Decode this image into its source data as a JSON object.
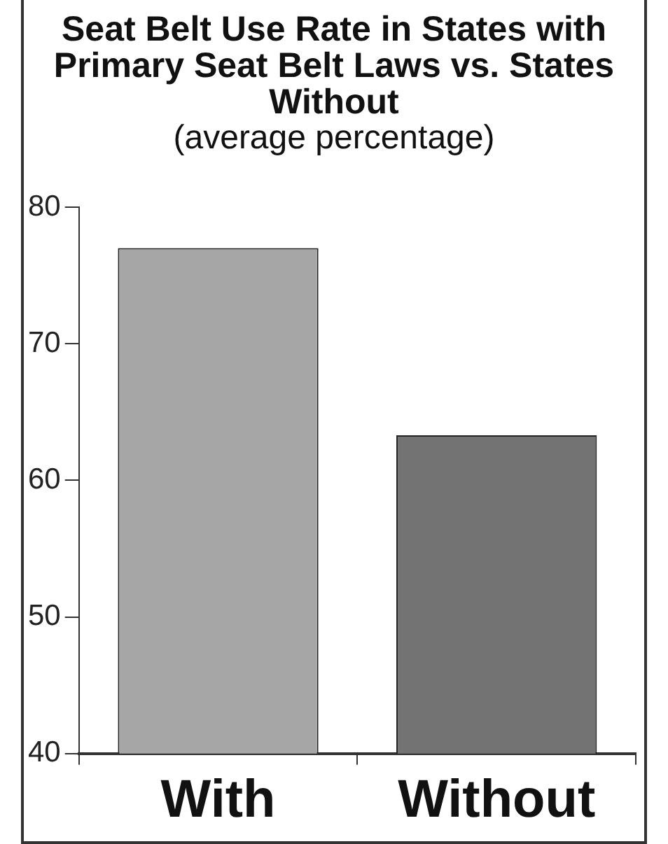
{
  "chart_data": {
    "type": "bar",
    "title": "Seat Belt Use Rate in States with Primary Seat Belt Laws vs. States Without",
    "subtitle": "(average percentage)",
    "categories": [
      "With",
      "Without"
    ],
    "values": [
      77,
      63.3
    ],
    "colors": [
      "#a6a6a6",
      "#737373"
    ],
    "ylim": [
      40,
      80
    ],
    "yticks": [
      40,
      50,
      60,
      70,
      80
    ]
  }
}
